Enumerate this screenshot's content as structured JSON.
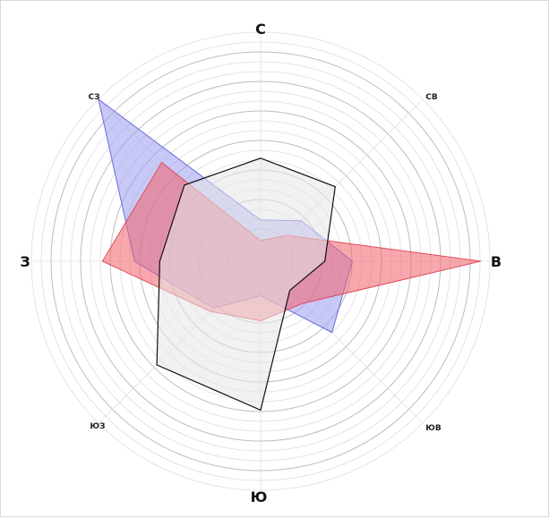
{
  "chart_data": {
    "type": "radar",
    "title": "",
    "directions": [
      "С",
      "СВ",
      "В",
      "ЮВ",
      "Ю",
      "ЮЗ",
      "З",
      "СЗ"
    ],
    "rlim": [
      0,
      1
    ],
    "grid": true,
    "legend": "none",
    "series": [
      {
        "color": "#6b6bdd",
        "fill": "#9c9cf0",
        "fill_opacity": 0.55,
        "stroke_width": 1,
        "values": [
          0.18,
          0.25,
          0.4,
          0.44,
          0.15,
          0.29,
          0.55,
          1.0
        ]
      },
      {
        "color": "#e04a5a",
        "fill": "#f2606a",
        "fill_opacity": 0.55,
        "stroke_width": 1,
        "values": [
          0.09,
          0.16,
          0.96,
          0.26,
          0.26,
          0.31,
          0.69,
          0.61
        ]
      },
      {
        "color": "#111111",
        "fill": "#e6e6e8",
        "fill_opacity": 0.55,
        "stroke_width": 1.2,
        "values": [
          0.45,
          0.46,
          0.28,
          0.18,
          0.65,
          0.64,
          0.44,
          0.47
        ]
      }
    ]
  }
}
